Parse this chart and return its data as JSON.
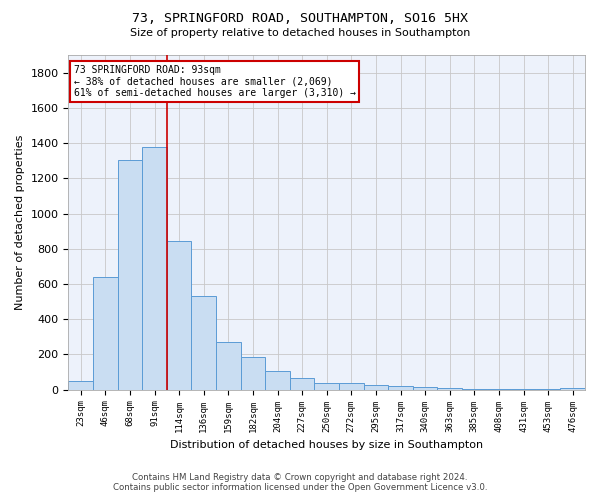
{
  "title_line1": "73, SPRINGFORD ROAD, SOUTHAMPTON, SO16 5HX",
  "title_line2": "Size of property relative to detached houses in Southampton",
  "xlabel": "Distribution of detached houses by size in Southampton",
  "ylabel": "Number of detached properties",
  "bar_color": "#c9ddf2",
  "bar_edge_color": "#5b9bd5",
  "background_color": "#edf2fb",
  "grid_color": "#c8c8c8",
  "bin_labels": [
    "23sqm",
    "46sqm",
    "68sqm",
    "91sqm",
    "114sqm",
    "136sqm",
    "159sqm",
    "182sqm",
    "204sqm",
    "227sqm",
    "250sqm",
    "272sqm",
    "295sqm",
    "317sqm",
    "340sqm",
    "363sqm",
    "385sqm",
    "408sqm",
    "431sqm",
    "453sqm",
    "476sqm"
  ],
  "bar_values": [
    50,
    640,
    1305,
    1380,
    845,
    530,
    270,
    185,
    105,
    65,
    40,
    38,
    28,
    22,
    15,
    8,
    5,
    4,
    3,
    2,
    12
  ],
  "ylim": [
    0,
    1900
  ],
  "yticks": [
    0,
    200,
    400,
    600,
    800,
    1000,
    1200,
    1400,
    1600,
    1800
  ],
  "red_line_x": 3.5,
  "annotation_text_line1": "73 SPRINGFORD ROAD: 93sqm",
  "annotation_text_line2": "← 38% of detached houses are smaller (2,069)",
  "annotation_text_line3": "61% of semi-detached houses are larger (3,310) →",
  "annotation_box_facecolor": "#ffffff",
  "annotation_border_color": "#cc0000",
  "footer_line1": "Contains HM Land Registry data © Crown copyright and database right 2024.",
  "footer_line2": "Contains public sector information licensed under the Open Government Licence v3.0."
}
